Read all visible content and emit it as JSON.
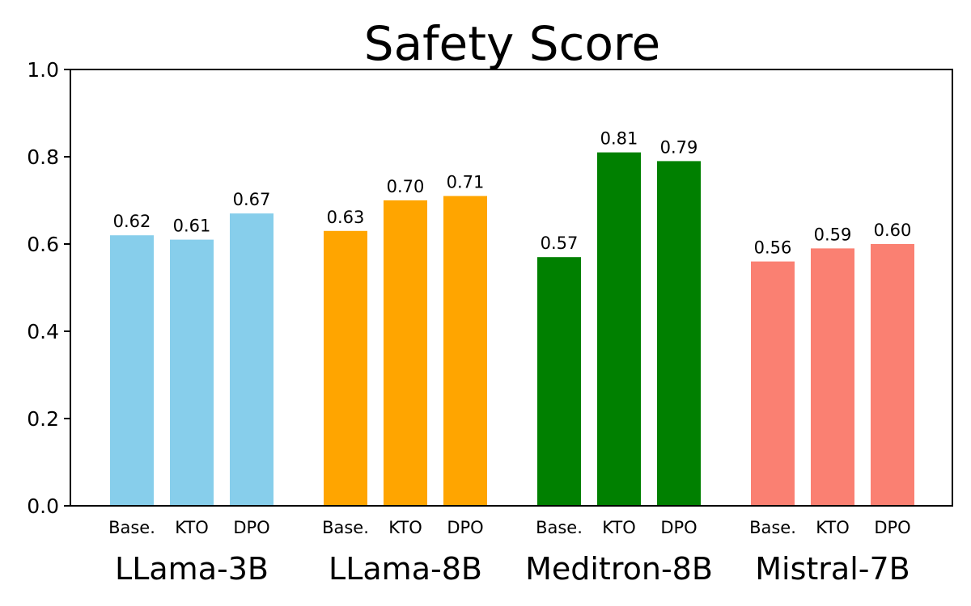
{
  "chart_data": {
    "type": "bar",
    "title": "Safety Score",
    "ylim": [
      0,
      1.0
    ],
    "yticks": [
      "0.0",
      "0.2",
      "0.4",
      "0.6",
      "0.8",
      "1.0"
    ],
    "grid": false,
    "groups": [
      {
        "name": "LLama-3B",
        "color": "#87CEEB",
        "bars": [
          {
            "label": "Base.",
            "value": 0.62,
            "value_label": "0.62"
          },
          {
            "label": "KTO",
            "value": 0.61,
            "value_label": "0.61"
          },
          {
            "label": "DPO",
            "value": 0.67,
            "value_label": "0.67"
          }
        ]
      },
      {
        "name": "LLama-8B",
        "color": "#FFA500",
        "bars": [
          {
            "label": "Base.",
            "value": 0.63,
            "value_label": "0.63"
          },
          {
            "label": "KTO",
            "value": 0.7,
            "value_label": "0.70"
          },
          {
            "label": "DPO",
            "value": 0.71,
            "value_label": "0.71"
          }
        ]
      },
      {
        "name": "Meditron-8B",
        "color": "#008000",
        "bars": [
          {
            "label": "Base.",
            "value": 0.57,
            "value_label": "0.57"
          },
          {
            "label": "KTO",
            "value": 0.81,
            "value_label": "0.81"
          },
          {
            "label": "DPO",
            "value": 0.79,
            "value_label": "0.79"
          }
        ]
      },
      {
        "name": "Mistral-7B",
        "color": "#FA8072",
        "bars": [
          {
            "label": "Base.",
            "value": 0.56,
            "value_label": "0.56"
          },
          {
            "label": "KTO",
            "value": 0.59,
            "value_label": "0.59"
          },
          {
            "label": "DPO",
            "value": 0.6,
            "value_label": "0.60"
          }
        ]
      }
    ]
  }
}
